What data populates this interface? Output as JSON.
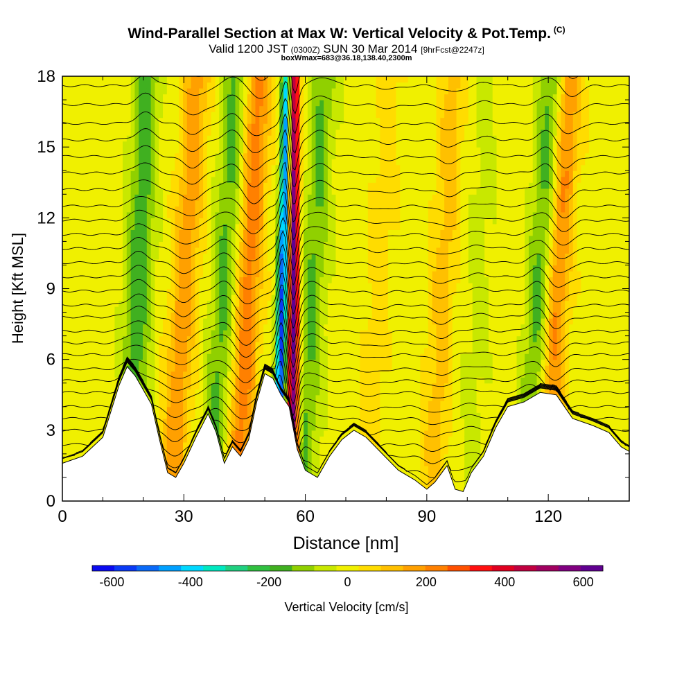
{
  "chart_data": {
    "type": "heatmap",
    "title": "Wind-Parallel Section at Max W: Vertical Velocity & Pot.Temp.",
    "title_mark": "(C)",
    "subtitle_valid": "Valid 1200 JST",
    "subtitle_utc": "(0300Z)",
    "subtitle_date": "SUN 30 Mar 2014",
    "subtitle_fcst": "[9hrFcst@2247z]",
    "subtitle_box": "boxWmax=683@36.18,138.40,2300m",
    "xlabel": "Distance [nm]",
    "ylabel": "Height [Kft MSL]",
    "xlim": [
      0,
      140
    ],
    "ylim": [
      0,
      18
    ],
    "x_ticks": [
      0,
      30,
      60,
      90,
      120
    ],
    "y_ticks": [
      0,
      3,
      6,
      9,
      12,
      15,
      18
    ],
    "colorbar_label": "Vertical Velocity [cm/s]",
    "colorbar_ticks": [
      -600,
      -400,
      -200,
      0,
      200,
      400,
      600
    ],
    "colorbar_range": [
      -650,
      650
    ],
    "colorbar_colors": [
      "#0a0af0",
      "#0a3af5",
      "#0a6af8",
      "#00a0ff",
      "#00d8ff",
      "#00e8c0",
      "#20d080",
      "#30c040",
      "#40b020",
      "#90d000",
      "#c8e800",
      "#f0f000",
      "#ffdc00",
      "#ffc000",
      "#ffa000",
      "#ff8000",
      "#ff5000",
      "#ff1010",
      "#e00020",
      "#c00040",
      "#a00060",
      "#800080",
      "#600090"
    ],
    "terrain_kft": [
      [
        0,
        1.6
      ],
      [
        5,
        1.9
      ],
      [
        10,
        2.7
      ],
      [
        14,
        4.9
      ],
      [
        16,
        5.7
      ],
      [
        18,
        5.3
      ],
      [
        20,
        4.7
      ],
      [
        22,
        4.1
      ],
      [
        24,
        2.6
      ],
      [
        26,
        1.2
      ],
      [
        28,
        1.0
      ],
      [
        30,
        1.6
      ],
      [
        33,
        2.7
      ],
      [
        36,
        3.7
      ],
      [
        38,
        2.9
      ],
      [
        40,
        1.6
      ],
      [
        42,
        2.3
      ],
      [
        44,
        1.9
      ],
      [
        46,
        2.6
      ],
      [
        48,
        4.2
      ],
      [
        50,
        5.4
      ],
      [
        52,
        5.2
      ],
      [
        54,
        4.5
      ],
      [
        56,
        4.0
      ],
      [
        58,
        2.2
      ],
      [
        60,
        1.3
      ],
      [
        63,
        1.0
      ],
      [
        66,
        1.9
      ],
      [
        69,
        2.6
      ],
      [
        72,
        3.0
      ],
      [
        75,
        2.7
      ],
      [
        79,
        2.0
      ],
      [
        83,
        1.3
      ],
      [
        87,
        0.9
      ],
      [
        90,
        0.5
      ],
      [
        92,
        0.8
      ],
      [
        95,
        1.5
      ],
      [
        97,
        0.5
      ],
      [
        99,
        0.4
      ],
      [
        101,
        1.2
      ],
      [
        104,
        1.9
      ],
      [
        107,
        3.1
      ],
      [
        110,
        4.0
      ],
      [
        114,
        4.2
      ],
      [
        118,
        4.6
      ],
      [
        122,
        4.5
      ],
      [
        126,
        3.5
      ],
      [
        131,
        3.2
      ],
      [
        135,
        2.9
      ],
      [
        138,
        2.3
      ],
      [
        140,
        2.1
      ]
    ],
    "vv_ridges": [
      {
        "x0": 18,
        "tilt": 0.25,
        "value": -180
      },
      {
        "x0": 29,
        "tilt": 0.35,
        "value": 180
      },
      {
        "x0": 39,
        "tilt": 0.33,
        "value": -160
      },
      {
        "x0": 45,
        "tilt": 0.3,
        "value": 230
      },
      {
        "x0": 54,
        "tilt": 0.15,
        "value": -560
      },
      {
        "x0": 57,
        "tilt": 0.0,
        "value": 650
      },
      {
        "x0": 61,
        "tilt": 0.3,
        "value": -150
      },
      {
        "x0": 77,
        "tilt": 0.35,
        "value": 60
      },
      {
        "x0": 93,
        "tilt": 0.3,
        "value": 110
      },
      {
        "x0": 102,
        "tilt": 0.25,
        "value": -50
      },
      {
        "x0": 117,
        "tilt": 0.35,
        "value": -180
      },
      {
        "x0": 121,
        "tilt": 0.35,
        "value": 220
      }
    ],
    "theta_levels_kft": [
      0.8,
      1.3,
      1.9,
      2.4,
      3.0,
      3.5,
      4.0,
      4.6,
      5.1,
      5.6,
      6.2,
      6.7,
      7.2,
      7.8,
      8.3,
      8.9,
      9.5,
      10.1,
      10.7,
      11.3,
      11.9,
      12.5,
      13.2,
      13.9,
      14.6,
      15.3,
      16.0,
      16.8,
      17.6,
      18.4
    ]
  }
}
